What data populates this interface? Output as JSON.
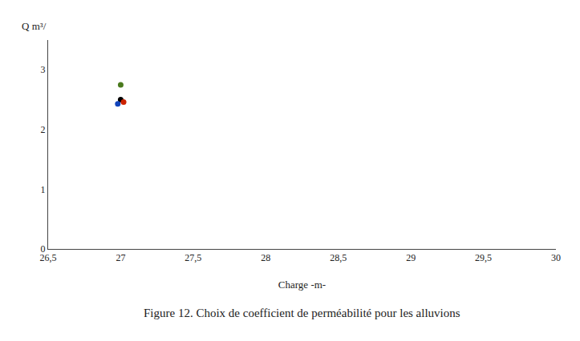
{
  "chart_data": {
    "type": "scatter",
    "title": "Figure 12. Choix de coefficient de perméabilité pour les alluvions",
    "xlabel": "Charge -m-",
    "ylabel": "Q m³/",
    "x": [
      27.0,
      27.0,
      27.02,
      26.98
    ],
    "values": [
      2.75,
      2.5,
      2.46,
      2.43
    ],
    "colors": [
      "#4a7a1e",
      "#000000",
      "#cc2200",
      "#1144bb"
    ],
    "marker": "circle",
    "xlim": [
      26.5,
      30.0
    ],
    "xticks": [
      {
        "value": 26.5,
        "label": "26,5"
      },
      27,
      {
        "value": 27.5,
        "label": "27,5"
      },
      28,
      {
        "value": 28.5,
        "label": "28,5"
      },
      29,
      {
        "value": 29.5,
        "label": "29,5"
      },
      30
    ],
    "ylim": [
      0,
      3.5
    ],
    "yticks": [
      0,
      1,
      2,
      3
    ],
    "grid": false
  }
}
